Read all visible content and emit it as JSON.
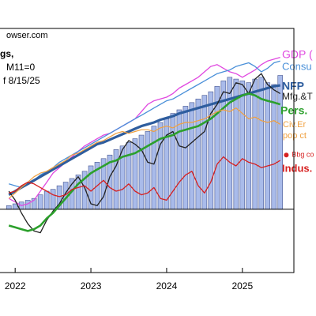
{
  "chart_data": {
    "type": "line",
    "source": "owser.com",
    "note_lines": [
      "gs,",
      "M11=0",
      "f 8/15/25"
    ],
    "x": [
      2021.917,
      2022.0,
      2022.083,
      2022.167,
      2022.25,
      2022.333,
      2022.417,
      2022.5,
      2022.583,
      2022.667,
      2022.75,
      2022.833,
      2022.917,
      2023.0,
      2023.083,
      2023.167,
      2023.25,
      2023.333,
      2023.417,
      2023.5,
      2023.583,
      2023.667,
      2023.75,
      2023.833,
      2023.917,
      2024.0,
      2024.083,
      2024.167,
      2024.25,
      2024.333,
      2024.417,
      2024.5,
      2024.583,
      2024.667,
      2024.75,
      2024.833,
      2024.917,
      2025.0,
      2025.083,
      2025.167,
      2025.25,
      2025.333,
      2025.417,
      2025.5
    ],
    "xlim": [
      2021.8,
      2025.68
    ],
    "xticks": [
      2022,
      2023,
      2024,
      2025
    ],
    "ylim": [
      -3.5,
      10
    ],
    "zero_line": 0,
    "bar_color": "#a9bbea",
    "bar_values": [
      0.2,
      0.3,
      0.4,
      0.5,
      0.6,
      0.8,
      1.0,
      1.1,
      1.3,
      1.5,
      1.7,
      1.9,
      2.1,
      2.4,
      2.6,
      2.8,
      3.0,
      3.3,
      3.5,
      3.7,
      3.9,
      4.1,
      4.3,
      4.6,
      4.8,
      5.0,
      5.3,
      5.5,
      5.7,
      5.9,
      6.1,
      6.3,
      6.5,
      6.8,
      7.1,
      7.3,
      7.2,
      7.1,
      7.0,
      7.2,
      7.3,
      7.0,
      6.9,
      7.4
    ],
    "series": [
      {
        "name": "GDP (",
        "color": "#e048e0",
        "values": [
          0.6,
          0.4,
          0.2,
          0.3,
          0.5,
          1.0,
          1.5,
          2.0,
          2.3,
          2.6,
          2.9,
          3.2,
          3.5,
          3.7,
          3.9,
          4.1,
          4.2,
          4.4,
          4.6,
          4.8,
          5.0,
          5.4,
          5.8,
          6.0,
          6.1,
          6.2,
          6.4,
          6.7,
          6.9,
          7.1,
          7.3,
          7.6,
          7.9,
          8.0,
          7.8,
          7.6,
          7.5,
          7.3,
          7.5,
          7.7,
          8.0,
          8.2,
          8.3,
          8.4
        ]
      },
      {
        "name": "Consu",
        "color": "#4a90d9",
        "values": [
          1.4,
          1.3,
          1.2,
          1.4,
          1.6,
          1.9,
          2.1,
          2.3,
          2.6,
          2.8,
          3.0,
          3.2,
          3.4,
          3.6,
          3.8,
          4.0,
          4.2,
          4.4,
          4.6,
          4.8,
          5.0,
          5.2,
          5.4,
          5.6,
          5.8,
          6.0,
          6.1,
          6.3,
          6.5,
          6.7,
          6.9,
          7.1,
          7.3,
          7.5,
          7.6,
          7.7,
          7.9,
          8.0,
          8.1,
          7.9,
          7.6,
          7.8,
          8.1,
          8.2
        ]
      },
      {
        "name": "NFP",
        "color": "#2e5d9e",
        "values": [
          0.8,
          1.0,
          1.2,
          1.4,
          1.6,
          1.8,
          2.0,
          2.2,
          2.4,
          2.6,
          2.8,
          3.0,
          3.2,
          3.4,
          3.6,
          3.7,
          3.85,
          4.0,
          4.15,
          4.3,
          4.45,
          4.6,
          4.7,
          4.8,
          4.95,
          5.05,
          5.15,
          5.3,
          5.4,
          5.5,
          5.6,
          5.7,
          5.8,
          5.9,
          6.0,
          6.1,
          6.2,
          6.3,
          6.4,
          6.5,
          6.6,
          6.7,
          6.8,
          6.85
        ]
      },
      {
        "name": "Mfg.&T",
        "color": "#222222",
        "values": [
          1.0,
          0.5,
          -0.2,
          -0.8,
          -1.2,
          -1.3,
          -0.6,
          -0.1,
          0.3,
          0.9,
          1.4,
          1.8,
          1.2,
          0.3,
          0.2,
          0.7,
          1.8,
          2.4,
          3.3,
          3.8,
          3.6,
          3.3,
          2.6,
          2.5,
          3.6,
          4.1,
          4.3,
          3.5,
          3.4,
          3.7,
          4.0,
          4.3,
          5.3,
          5.8,
          6.5,
          6.4,
          7.0,
          6.9,
          6.4,
          7.2,
          7.5,
          6.9,
          6.6,
          6.4
        ]
      },
      {
        "name": "Pers.",
        "color": "#2ca02c",
        "values": [
          -0.9,
          -1.0,
          -1.1,
          -1.2,
          -1.1,
          -0.9,
          -0.5,
          -0.2,
          0.2,
          0.6,
          1.0,
          1.4,
          1.7,
          2.0,
          2.2,
          2.4,
          2.6,
          2.7,
          2.9,
          3.0,
          3.1,
          3.3,
          3.5,
          3.7,
          3.9,
          4.0,
          4.1,
          4.3,
          4.4,
          4.5,
          4.6,
          4.8,
          5.0,
          5.3,
          5.6,
          5.9,
          6.1,
          6.3,
          6.4,
          6.3,
          6.1,
          6.0,
          5.9,
          5.8
        ]
      },
      {
        "name_lines": [
          "Civ.Er",
          "pop ct"
        ],
        "color": "#f0a040",
        "values": [
          0.6,
          0.9,
          1.2,
          1.5,
          1.8,
          2.0,
          2.1,
          2.3,
          2.5,
          2.7,
          3.0,
          3.1,
          3.3,
          3.5,
          3.7,
          3.8,
          4.0,
          4.2,
          4.3,
          4.2,
          4.3,
          4.4,
          4.4,
          4.3,
          4.5,
          4.6,
          4.5,
          4.7,
          4.8,
          4.8,
          4.9,
          5.0,
          5.2,
          5.4,
          5.5,
          5.4,
          5.6,
          5.3,
          5.0,
          5.1,
          4.9,
          4.8,
          4.9,
          4.7
        ]
      },
      {
        "name": "Indus.",
        "color": "#d62020",
        "values": [
          0.9,
          1.0,
          1.3,
          1.5,
          1.4,
          1.2,
          1.0,
          0.8,
          0.7,
          0.8,
          1.1,
          1.2,
          1.3,
          1.0,
          1.3,
          1.6,
          1.2,
          1.0,
          1.1,
          1.4,
          1.0,
          0.8,
          0.9,
          1.2,
          0.6,
          0.5,
          1.0,
          1.5,
          1.9,
          2.1,
          1.3,
          0.9,
          1.5,
          2.5,
          2.9,
          2.6,
          2.4,
          2.8,
          2.6,
          2.5,
          2.3,
          2.4,
          2.5,
          2.7
        ]
      }
    ],
    "consensus": {
      "name": "Bbg co",
      "color": "#d62020",
      "x": 2025.58,
      "value": 3.0
    }
  }
}
